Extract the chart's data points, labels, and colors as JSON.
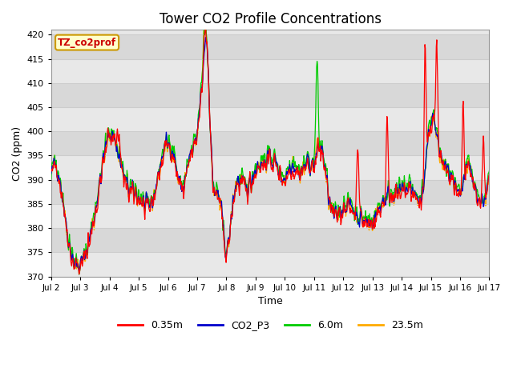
{
  "title": "Tower CO2 Profile Concentrations",
  "xlabel": "Time",
  "ylabel": "CO2 (ppm)",
  "ylim": [
    370,
    421
  ],
  "yticks": [
    370,
    375,
    380,
    385,
    390,
    395,
    400,
    405,
    410,
    415,
    420
  ],
  "xtick_labels": [
    "Jul 2",
    "Jul 3",
    "Jul 4",
    "Jul 5",
    "Jul 6",
    "Jul 7",
    "Jul 8",
    "Jul 9",
    "Jul 10",
    "Jul 11",
    "Jul 12",
    "Jul 13",
    "Jul 14",
    "Jul 15",
    "Jul 16",
    "Jul 17"
  ],
  "legend_labels": [
    "0.35m",
    "CO2_P3",
    "6.0m",
    "23.5m"
  ],
  "legend_colors": [
    "#ff0000",
    "#0000cc",
    "#00cc00",
    "#ffaa00"
  ],
  "line_colors": [
    "#ff0000",
    "#0000cc",
    "#00cc00",
    "#ffaa00"
  ],
  "watermark_text": "TZ_co2prof",
  "watermark_bg": "#ffffcc",
  "watermark_border": "#cc9900",
  "watermark_text_color": "#cc0000",
  "plot_bg_light": "#e8e8e8",
  "plot_bg_dark": "#d4d4d4",
  "grid_color": "#ffffff",
  "title_fontsize": 12,
  "num_points": 960,
  "band_colors": [
    "#e8e8e8",
    "#d8d8d8"
  ]
}
